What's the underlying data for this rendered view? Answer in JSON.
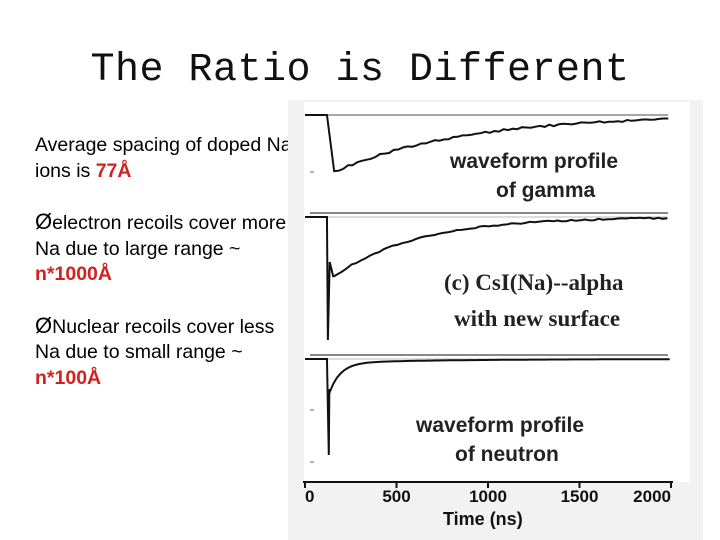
{
  "slide": {
    "title": "The Ratio is Different"
  },
  "text": {
    "p1_a": "Average spacing of doped Na ions is ",
    "p1_b": "77Å",
    "arrow": "Ø",
    "p2_a": "electron recoils cover more Na due to large range ~ ",
    "p2_b": "n*1000Å",
    "p3_a": "Nuclear recoils cover less Na due to small range ~ ",
    "p3_b": "n*100Å"
  },
  "figure": {
    "panel1_line1": "waveform profile",
    "panel1_line2": "of gamma",
    "panel2_line1": "(c) CsI(Na)--alpha",
    "panel2_line2": "with new surface",
    "panel3_line1": "waveform profile",
    "panel3_line2": "of neutron",
    "xlabel": "Time (ns)",
    "xticks": [
      "0",
      "500",
      "1000",
      "1500",
      "2000"
    ]
  },
  "chart_data": {
    "type": "line",
    "title": "",
    "xlabel": "Time (ns)",
    "ylabel": "",
    "xlim": [
      0,
      2000
    ],
    "series": [
      {
        "name": "waveform profile of gamma",
        "pulse_start_ns": 120,
        "rise_time_ns": 40,
        "decay_ns": 700
      },
      {
        "name": "(c) CsI(Na)--alpha with new surface",
        "pulse_start_ns": 120,
        "rise_time_ns": 20,
        "decay_ns": 450
      },
      {
        "name": "waveform profile of neutron",
        "pulse_start_ns": 120,
        "rise_time_ns": 10,
        "decay_ns": 60
      }
    ]
  }
}
